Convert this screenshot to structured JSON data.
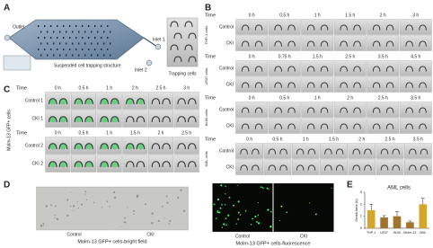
{
  "panels": {
    "a": {
      "label": "A",
      "chip_labels": [
        "Outlet",
        "Inlet 1",
        "Inlet 2",
        "Suspended cell trapping structure"
      ],
      "image_caption": "Trapping cells"
    },
    "b": {
      "label": "B",
      "blocks": [
        {
          "header": "Time",
          "cell": "THP-1 cells",
          "times": [
            "0 h",
            "0.5 h",
            "1 h",
            "1.5 h",
            "2 h",
            "3 h"
          ],
          "rows": [
            "Control",
            "CKI"
          ]
        },
        {
          "header": "Time",
          "cell": "U937 cells",
          "times": [
            "0 h",
            "0.75 h",
            "1.5 h",
            "2.5 h",
            "3.5 h",
            "4.5 h"
          ],
          "rows": [
            "Control",
            "CKI"
          ]
        },
        {
          "header": "Time",
          "cell": "HL60 cells",
          "times": [
            "0 h",
            "0.5 h",
            "1 h",
            "2 h",
            "2.5 h",
            "3.5 h"
          ],
          "rows": [
            "Control",
            "CKI"
          ]
        },
        {
          "header": "Time",
          "cell": "AML cells",
          "times": [
            "0 h",
            "0.5 h",
            "1 h",
            "1.5 h",
            "2 h",
            "2.5 h",
            "3.5 h"
          ],
          "rows": [
            "Control",
            "CKI"
          ]
        }
      ]
    },
    "c": {
      "label": "C",
      "side_label": "Molm-13 GFP+ cells",
      "blocks": [
        {
          "header": "Time",
          "times": [
            "0 h",
            "0.5 h",
            "1 h",
            "2 h",
            "2.5 h",
            "3 h"
          ],
          "rows": [
            "Control 1",
            "CKI 1"
          ]
        },
        {
          "header": "Time",
          "times": [
            "0 h",
            "0.5 h",
            "1 h",
            "1.5 h",
            "2 h",
            "2.5 h"
          ],
          "rows": [
            "Control 2",
            "CKI 2"
          ]
        }
      ]
    },
    "d": {
      "label": "D",
      "groups": [
        {
          "caption": "Molm-13 GFP+ cells-bright field",
          "images": [
            "Control",
            "CKI"
          ]
        },
        {
          "caption": "Molm-13 GFP+ cells-fluorescence",
          "images": [
            "Control",
            "CKI"
          ]
        }
      ]
    }
  },
  "chart_data": {
    "type": "bar",
    "label": "E",
    "title": "AML cells",
    "y_label": "Death time (h)",
    "categories": [
      "THP-1",
      "U937",
      "HL60",
      "Molm-13",
      "AML"
    ],
    "values": [
      1.5,
      0.9,
      1.0,
      0.5,
      2.0
    ],
    "errors": [
      0.5,
      0.15,
      0.4,
      0.1,
      0.5
    ],
    "colors": [
      "#d4a62a",
      "#a0742a",
      "#a0742a",
      "#a0742a",
      "#d4a62a"
    ],
    "ylim": [
      0,
      3
    ],
    "yticks": [
      0,
      1,
      2,
      3
    ]
  }
}
